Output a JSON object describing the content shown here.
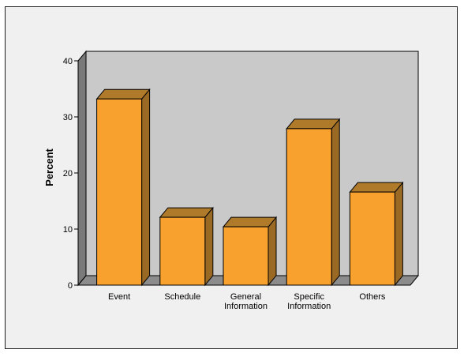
{
  "chart_data": {
    "type": "bar",
    "title": "",
    "xlabel": "",
    "ylabel": "Percent",
    "categories": [
      [
        "Event"
      ],
      [
        "Schedule"
      ],
      [
        "General",
        "Information"
      ],
      [
        "Specific",
        "Information"
      ],
      [
        "Others"
      ]
    ],
    "values": [
      33.2,
      12.1,
      10.4,
      27.9,
      16.6
    ],
    "ylim": [
      0,
      40
    ],
    "yticks": [
      0,
      10,
      20,
      30,
      40
    ],
    "grid": false,
    "legend": "none",
    "colors": {
      "bar_front": "#f9a12e",
      "bar_top": "#b07a2b",
      "bar_side": "#9a6a24",
      "back_wall": "#c9c9c9",
      "side_wall": "#7a7a7a",
      "floor": "#8c8c8c",
      "panel": "#f0f0f0"
    }
  }
}
